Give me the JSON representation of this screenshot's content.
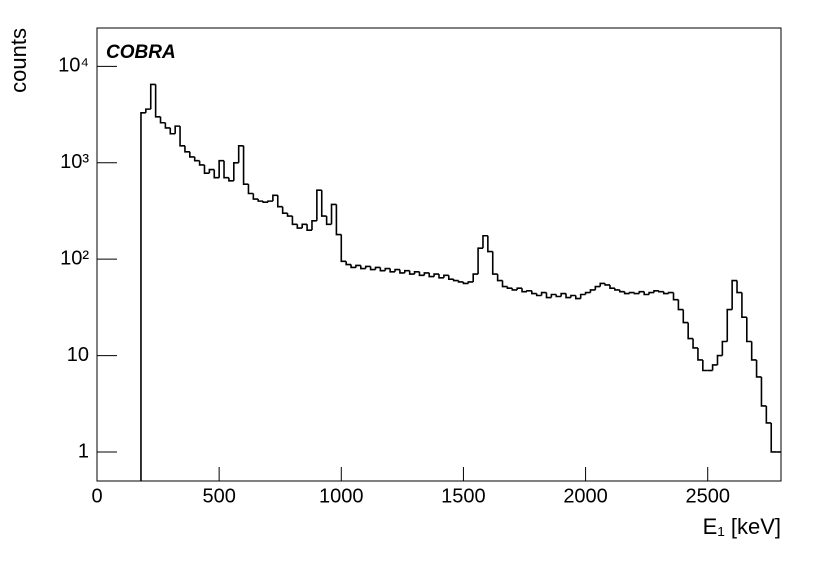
{
  "chart_data": {
    "type": "histogram",
    "annotation": "COBRA",
    "xlabel": "E₁ [keV]",
    "ylabel": "counts",
    "color": "#000000",
    "log_y": true,
    "xlim": [
      0,
      2800
    ],
    "xticks": [
      0,
      500,
      1000,
      1500,
      2000,
      2500
    ],
    "ylim": [
      0.5,
      25000
    ],
    "yticks": [
      1,
      10,
      {
        "value": 100,
        "label": "10²"
      },
      {
        "value": 1000,
        "label": "10³"
      },
      {
        "value": 10000,
        "label": "10⁴"
      }
    ],
    "bins": [
      180,
      200,
      220,
      240,
      260,
      280,
      300,
      320,
      340,
      360,
      380,
      400,
      420,
      440,
      460,
      480,
      500,
      520,
      540,
      560,
      580,
      600,
      620,
      640,
      660,
      680,
      700,
      720,
      740,
      760,
      780,
      800,
      820,
      840,
      860,
      880,
      900,
      920,
      940,
      960,
      980,
      1000,
      1020,
      1040,
      1060,
      1080,
      1100,
      1120,
      1140,
      1160,
      1180,
      1200,
      1220,
      1240,
      1260,
      1280,
      1300,
      1320,
      1340,
      1360,
      1380,
      1400,
      1420,
      1440,
      1460,
      1480,
      1500,
      1520,
      1540,
      1560,
      1580,
      1600,
      1620,
      1640,
      1660,
      1680,
      1700,
      1720,
      1740,
      1760,
      1780,
      1800,
      1820,
      1840,
      1860,
      1880,
      1900,
      1920,
      1940,
      1960,
      1980,
      2000,
      2020,
      2040,
      2060,
      2080,
      2100,
      2120,
      2140,
      2160,
      2180,
      2200,
      2220,
      2240,
      2260,
      2280,
      2300,
      2320,
      2340,
      2360,
      2380,
      2400,
      2420,
      2440,
      2460,
      2480,
      2500,
      2520,
      2540,
      2560,
      2580,
      2600,
      2620,
      2640,
      2660,
      2680,
      2700,
      2720,
      2740,
      2760,
      2780,
      2800
    ],
    "values": [
      3300,
      3600,
      6500,
      3000,
      2600,
      2300,
      2000,
      2400,
      1500,
      1300,
      1150,
      1050,
      950,
      780,
      850,
      700,
      1050,
      700,
      650,
      1000,
      1500,
      600,
      480,
      420,
      400,
      390,
      400,
      460,
      350,
      300,
      280,
      230,
      210,
      230,
      200,
      250,
      520,
      280,
      230,
      370,
      180,
      95,
      88,
      82,
      86,
      80,
      84,
      78,
      82,
      76,
      80,
      74,
      78,
      72,
      76,
      70,
      74,
      68,
      72,
      66,
      70,
      64,
      68,
      62,
      60,
      58,
      56,
      58,
      70,
      130,
      175,
      120,
      70,
      60,
      52,
      50,
      48,
      50,
      46,
      47,
      44,
      42,
      45,
      40,
      43,
      41,
      44,
      40,
      42,
      39,
      43,
      45,
      48,
      52,
      56,
      54,
      50,
      48,
      46,
      44,
      45,
      44,
      46,
      43,
      45,
      47,
      46,
      44,
      45,
      38,
      30,
      22,
      15,
      12,
      9,
      7,
      7,
      8,
      10,
      14,
      30,
      60,
      45,
      25,
      14,
      9,
      6,
      3,
      2,
      1,
      1
    ]
  }
}
